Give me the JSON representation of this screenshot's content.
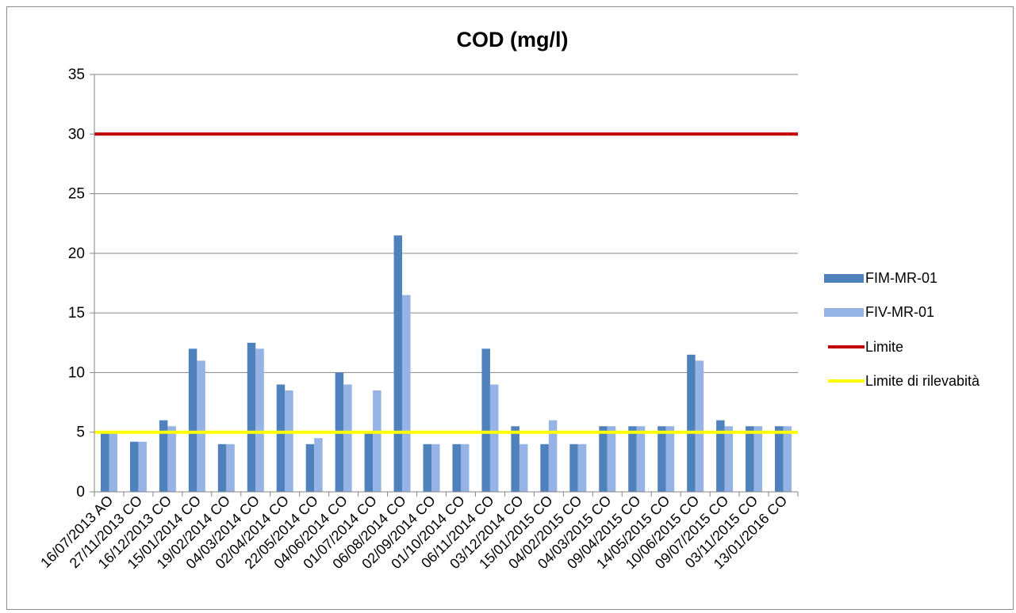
{
  "chart_data": {
    "type": "bar",
    "title": "COD (mg/l)",
    "xlabel": "",
    "ylabel": "",
    "ylim": [
      0,
      35
    ],
    "yticks": [
      0,
      5,
      10,
      15,
      20,
      25,
      30,
      35
    ],
    "grid": true,
    "legend_position": "right",
    "categories": [
      "16/07/2013 AO",
      "27/11/2013 CO",
      "16/12/2013 CO",
      "15/01/2014 CO",
      "19/02/2014 CO",
      "04/03/2014 CO",
      "02/04/2014 CO",
      "22/05/2014 CO",
      "04/06/2014 CO",
      "01/07/2014 CO",
      "06/08/2014 CO",
      "02/09/2014 CO",
      "01/10/2014 CO",
      "06/11/2014 CO",
      "03/12/2014 CO",
      "15/01/2015 CO",
      "04/02/2015 CO",
      "04/03/2015 CO",
      "09/04/2015 CO",
      "14/05/2015  CO",
      "10/06/2015  CO",
      "09/07/2015 CO",
      "03/11/2015 CO",
      "13/01/2016 CO"
    ],
    "series": [
      {
        "name": "FIM-MR-01",
        "color": "#4f81bd",
        "values": [
          5,
          4.2,
          6,
          12,
          4,
          12.5,
          9,
          4,
          10,
          5,
          21.5,
          4,
          4,
          12,
          5.5,
          4,
          4,
          5.5,
          5.5,
          5.5,
          11.5,
          6,
          5.5,
          5.5
        ]
      },
      {
        "name": "FIV-MR-01",
        "color": "#95b3e4",
        "values": [
          5,
          4.2,
          5.5,
          11,
          4,
          12,
          8.5,
          4.5,
          9,
          8.5,
          16.5,
          4,
          4,
          9,
          4,
          6,
          4,
          5.5,
          5.5,
          5.5,
          11,
          5.5,
          5.5,
          5.5
        ]
      }
    ],
    "lines": [
      {
        "name": "Limite",
        "value": 30,
        "color": "#c00000"
      },
      {
        "name": "Limite di rilevabità",
        "value": 5,
        "color": "#ffff00"
      }
    ]
  }
}
